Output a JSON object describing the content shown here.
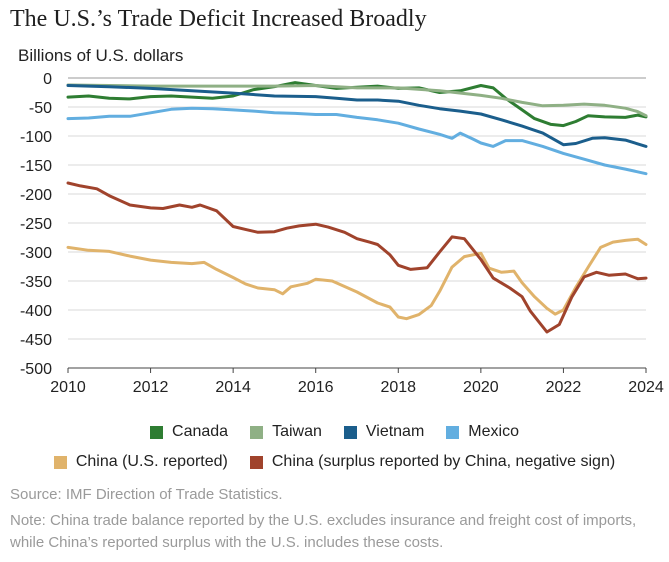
{
  "chart_data": {
    "type": "line",
    "title": "The U.S.’s Trade Deficit Increased Broadly",
    "ylabel": "Billions of U.S. dollars",
    "xlabel": "",
    "xlim": [
      2010,
      2024
    ],
    "ylim": [
      -500,
      0
    ],
    "xticks": [
      "2010",
      "2012",
      "2014",
      "2016",
      "2018",
      "2020",
      "2022",
      "2024"
    ],
    "yticks": [
      "0",
      "-50",
      "-100",
      "-150",
      "-200",
      "-250",
      "-300",
      "-350",
      "-400",
      "-450",
      "-500"
    ],
    "grid": "horizontal",
    "legend_placement": "bottom",
    "series": [
      {
        "name": "Canada",
        "color": "#2e7d32",
        "points": [
          [
            2010,
            -33
          ],
          [
            2010.5,
            -31
          ],
          [
            2011,
            -35
          ],
          [
            2011.5,
            -36
          ],
          [
            2012,
            -32
          ],
          [
            2012.5,
            -31
          ],
          [
            2013,
            -33
          ],
          [
            2013.5,
            -35
          ],
          [
            2014,
            -31
          ],
          [
            2014.5,
            -20
          ],
          [
            2015,
            -15
          ],
          [
            2015.5,
            -8
          ],
          [
            2016,
            -13
          ],
          [
            2016.5,
            -18
          ],
          [
            2017,
            -16
          ],
          [
            2017.5,
            -14
          ],
          [
            2018,
            -18
          ],
          [
            2018.5,
            -17
          ],
          [
            2019,
            -25
          ],
          [
            2019.5,
            -22
          ],
          [
            2020,
            -13
          ],
          [
            2020.3,
            -17
          ],
          [
            2020.6,
            -35
          ],
          [
            2021,
            -55
          ],
          [
            2021.3,
            -70
          ],
          [
            2021.7,
            -80
          ],
          [
            2022,
            -82
          ],
          [
            2022.3,
            -75
          ],
          [
            2022.6,
            -65
          ],
          [
            2023,
            -67
          ],
          [
            2023.5,
            -68
          ],
          [
            2023.8,
            -64
          ],
          [
            2024,
            -67
          ]
        ]
      },
      {
        "name": "Taiwan",
        "color": "#8fb085",
        "points": [
          [
            2010,
            -12
          ],
          [
            2011,
            -13
          ],
          [
            2012,
            -14
          ],
          [
            2013,
            -14
          ],
          [
            2014,
            -14
          ],
          [
            2015,
            -14
          ],
          [
            2016,
            -13
          ],
          [
            2017,
            -17
          ],
          [
            2018,
            -17
          ],
          [
            2019,
            -22
          ],
          [
            2020,
            -30
          ],
          [
            2020.5,
            -35
          ],
          [
            2021,
            -42
          ],
          [
            2021.5,
            -48
          ],
          [
            2022,
            -47
          ],
          [
            2022.5,
            -45
          ],
          [
            2023,
            -47
          ],
          [
            2023.5,
            -52
          ],
          [
            2023.8,
            -58
          ],
          [
            2024,
            -65
          ]
        ]
      },
      {
        "name": "Vietnam",
        "color": "#1b5e8c",
        "points": [
          [
            2010,
            -13
          ],
          [
            2011,
            -15
          ],
          [
            2012,
            -18
          ],
          [
            2013,
            -22
          ],
          [
            2014,
            -26
          ],
          [
            2015,
            -31
          ],
          [
            2016,
            -32
          ],
          [
            2016.5,
            -35
          ],
          [
            2017,
            -38
          ],
          [
            2017.5,
            -38
          ],
          [
            2018,
            -40
          ],
          [
            2018.5,
            -47
          ],
          [
            2019,
            -53
          ],
          [
            2019.5,
            -57
          ],
          [
            2020,
            -62
          ],
          [
            2020.5,
            -72
          ],
          [
            2021,
            -83
          ],
          [
            2021.5,
            -95
          ],
          [
            2022,
            -115
          ],
          [
            2022.3,
            -113
          ],
          [
            2022.7,
            -104
          ],
          [
            2023,
            -103
          ],
          [
            2023.5,
            -107
          ],
          [
            2024,
            -118
          ]
        ]
      },
      {
        "name": "Mexico",
        "color": "#62aee0",
        "points": [
          [
            2010,
            -70
          ],
          [
            2010.5,
            -69
          ],
          [
            2011,
            -66
          ],
          [
            2011.5,
            -66
          ],
          [
            2012,
            -60
          ],
          [
            2012.5,
            -54
          ],
          [
            2013,
            -52
          ],
          [
            2013.5,
            -53
          ],
          [
            2014,
            -55
          ],
          [
            2014.5,
            -57
          ],
          [
            2015,
            -60
          ],
          [
            2015.5,
            -61
          ],
          [
            2016,
            -63
          ],
          [
            2016.5,
            -63
          ],
          [
            2017,
            -68
          ],
          [
            2017.5,
            -72
          ],
          [
            2018,
            -78
          ],
          [
            2018.5,
            -88
          ],
          [
            2019,
            -97
          ],
          [
            2019.3,
            -104
          ],
          [
            2019.5,
            -95
          ],
          [
            2019.8,
            -105
          ],
          [
            2020,
            -112
          ],
          [
            2020.3,
            -118
          ],
          [
            2020.6,
            -108
          ],
          [
            2021,
            -108
          ],
          [
            2021.5,
            -118
          ],
          [
            2022,
            -130
          ],
          [
            2022.5,
            -140
          ],
          [
            2023,
            -150
          ],
          [
            2023.5,
            -157
          ],
          [
            2024,
            -165
          ]
        ]
      },
      {
        "name": "China (U.S. reported)",
        "color": "#e0b36b",
        "points": [
          [
            2010,
            -292
          ],
          [
            2010.5,
            -297
          ],
          [
            2011,
            -299
          ],
          [
            2011.5,
            -307
          ],
          [
            2012,
            -314
          ],
          [
            2012.5,
            -318
          ],
          [
            2013,
            -320
          ],
          [
            2013.3,
            -318
          ],
          [
            2013.6,
            -330
          ],
          [
            2014,
            -344
          ],
          [
            2014.3,
            -355
          ],
          [
            2014.6,
            -362
          ],
          [
            2015,
            -365
          ],
          [
            2015.2,
            -372
          ],
          [
            2015.4,
            -360
          ],
          [
            2015.8,
            -354
          ],
          [
            2016,
            -347
          ],
          [
            2016.4,
            -350
          ],
          [
            2017,
            -369
          ],
          [
            2017.5,
            -388
          ],
          [
            2017.8,
            -395
          ],
          [
            2018,
            -412
          ],
          [
            2018.2,
            -415
          ],
          [
            2018.5,
            -408
          ],
          [
            2018.8,
            -392
          ],
          [
            2019,
            -368
          ],
          [
            2019.3,
            -326
          ],
          [
            2019.6,
            -308
          ],
          [
            2020,
            -302
          ],
          [
            2020.2,
            -328
          ],
          [
            2020.5,
            -335
          ],
          [
            2020.8,
            -333
          ],
          [
            2021,
            -353
          ],
          [
            2021.3,
            -377
          ],
          [
            2021.6,
            -397
          ],
          [
            2021.8,
            -407
          ],
          [
            2022,
            -400
          ],
          [
            2022.3,
            -361
          ],
          [
            2022.6,
            -326
          ],
          [
            2022.9,
            -292
          ],
          [
            2023.2,
            -283
          ],
          [
            2023.5,
            -280
          ],
          [
            2023.8,
            -278
          ],
          [
            2024,
            -287
          ]
        ]
      },
      {
        "name": "China (surplus reported by China, negative sign)",
        "color": "#a0432c",
        "points": [
          [
            2010,
            -181
          ],
          [
            2010.3,
            -186
          ],
          [
            2010.7,
            -191
          ],
          [
            2011,
            -203
          ],
          [
            2011.5,
            -219
          ],
          [
            2012,
            -224
          ],
          [
            2012.3,
            -225
          ],
          [
            2012.7,
            -219
          ],
          [
            2013,
            -223
          ],
          [
            2013.2,
            -219
          ],
          [
            2013.6,
            -229
          ],
          [
            2014,
            -256
          ],
          [
            2014.3,
            -261
          ],
          [
            2014.6,
            -266
          ],
          [
            2015,
            -265
          ],
          [
            2015.3,
            -259
          ],
          [
            2015.6,
            -255
          ],
          [
            2016,
            -252
          ],
          [
            2016.3,
            -257
          ],
          [
            2016.7,
            -266
          ],
          [
            2017,
            -277
          ],
          [
            2017.3,
            -283
          ],
          [
            2017.5,
            -287
          ],
          [
            2017.8,
            -305
          ],
          [
            2018,
            -323
          ],
          [
            2018.3,
            -330
          ],
          [
            2018.7,
            -327
          ],
          [
            2019,
            -300
          ],
          [
            2019.3,
            -274
          ],
          [
            2019.6,
            -277
          ],
          [
            2020,
            -313
          ],
          [
            2020.3,
            -345
          ],
          [
            2020.7,
            -362
          ],
          [
            2021,
            -377
          ],
          [
            2021.2,
            -402
          ],
          [
            2021.6,
            -438
          ],
          [
            2021.9,
            -425
          ],
          [
            2022.2,
            -378
          ],
          [
            2022.5,
            -343
          ],
          [
            2022.8,
            -335
          ],
          [
            2023.1,
            -340
          ],
          [
            2023.5,
            -338
          ],
          [
            2023.8,
            -346
          ],
          [
            2024,
            -345
          ]
        ]
      }
    ]
  },
  "legend": {
    "row1": [
      "Canada",
      "Taiwan",
      "Vietnam",
      "Mexico"
    ],
    "row2": [
      "China (U.S. reported)",
      "China (surplus reported by China, negative sign)"
    ]
  },
  "footer": {
    "source": "Source: IMF Direction of Trade Statistics.",
    "note": "Note: China trade balance reported by the U.S. excludes insurance and freight cost of imports, while China’s reported surplus with the U.S. includes these costs."
  }
}
